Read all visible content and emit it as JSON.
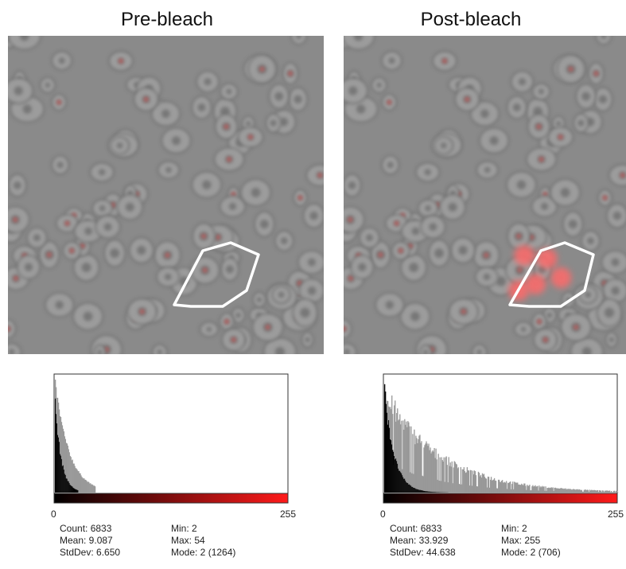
{
  "panels": [
    {
      "title": "Pre-bleach",
      "histogram": {
        "min_label": "0",
        "max_label": "255"
      },
      "stats": [
        "Count: 6833",
        "Mean: 9.087",
        "StdDev: 6.650",
        "Min: 2",
        "Max: 54",
        "Mode: 2 (1264)"
      ]
    },
    {
      "title": "Post-bleach",
      "histogram": {
        "min_label": "0",
        "max_label": "255"
      },
      "stats": [
        "Count: 6833",
        "Mean: 33.929",
        "StdDev: 44.638",
        "Min: 2",
        "Max: 255",
        "Mode: 2 (706)"
      ]
    }
  ]
}
